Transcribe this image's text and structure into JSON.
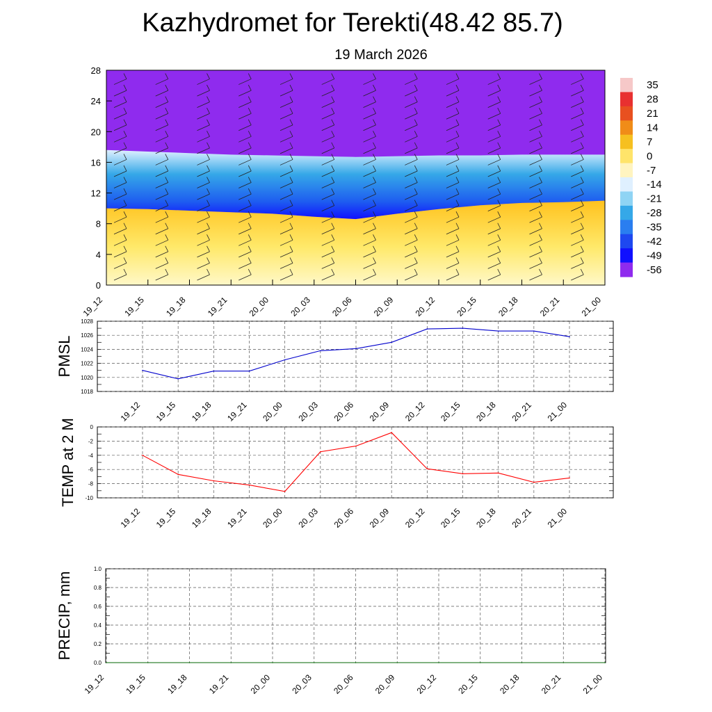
{
  "header": {
    "title": "Kazhydromet for Terekti(48.42 85.7)",
    "date": "19 March 2026"
  },
  "colors": {
    "purple": "#8f2bee",
    "deep_blue": "#1010ff",
    "blue": "#1e5cf0",
    "sky": "#35a8e8",
    "light": "#dff0ff",
    "yellow": "#ffe96a",
    "orange": "#ffc21e",
    "pmsl_line": "#0000cc",
    "temp_line": "#ff0000",
    "precip_line": "#006400"
  },
  "chart_data": [
    {
      "id": "crosssection",
      "type": "heatmap",
      "title": "Kazhydromet for Terekti(48.42 85.7)",
      "subtitle": "19 March 2026",
      "xlabel": "",
      "ylabel": "",
      "ylim": [
        0,
        28
      ],
      "yticks": [
        "0",
        "4",
        "8",
        "12",
        "16",
        "20",
        "24",
        "28"
      ],
      "categories": [
        "19_12",
        "19_15",
        "19_18",
        "19_21",
        "20_00",
        "20_03",
        "20_06",
        "20_09",
        "20_12",
        "20_15",
        "20_18",
        "20_21",
        "21_00"
      ],
      "freezing_level_km": [
        10,
        9.9,
        9.7,
        9.5,
        9.3,
        8.9,
        8.6,
        9.3,
        9.9,
        10.4,
        10.7,
        10.8,
        11.0
      ],
      "tropopause_km": [
        17.6,
        17.4,
        17.2,
        17.0,
        16.9,
        16.8,
        16.7,
        16.8,
        16.9,
        16.9,
        17.0,
        17.0,
        17.0
      ],
      "colorbar": {
        "labels": [
          "35",
          "28",
          "21",
          "14",
          "7",
          "0",
          "-7",
          "-14",
          "-21",
          "-28",
          "-35",
          "-42",
          "-49",
          "-56"
        ],
        "range": [
          -63,
          42
        ]
      }
    },
    {
      "id": "pmsl",
      "type": "line",
      "ylabel": "PMSL",
      "ylim": [
        1018,
        1028
      ],
      "yticks": [
        "1018",
        "1020",
        "1022",
        "1024",
        "1026",
        "1028"
      ],
      "categories": [
        "19_12",
        "19_15",
        "19_18",
        "19_21",
        "20_00",
        "20_03",
        "20_06",
        "20_09",
        "20_12",
        "20_15",
        "20_18",
        "20_21",
        "21_00"
      ],
      "series": [
        {
          "name": "PMSL",
          "values": [
            1021.0,
            1019.8,
            1020.9,
            1020.9,
            1022.5,
            1023.8,
            1024.1,
            1025.0,
            1026.9,
            1027.0,
            1026.6,
            1026.6,
            1025.8
          ]
        }
      ]
    },
    {
      "id": "temp",
      "type": "line",
      "ylabel": "TEMP at 2 M",
      "ylim": [
        -10,
        0
      ],
      "yticks": [
        "-10",
        "-8",
        "-6",
        "-4",
        "-2",
        "0"
      ],
      "categories": [
        "19_12",
        "19_15",
        "19_18",
        "19_21",
        "20_00",
        "20_03",
        "20_06",
        "20_09",
        "20_12",
        "20_15",
        "20_18",
        "20_21",
        "21_00"
      ],
      "series": [
        {
          "name": "TEMP at 2 M",
          "values": [
            -4.0,
            -6.7,
            -7.6,
            -8.2,
            -9.1,
            -3.5,
            -2.7,
            -0.8,
            -5.9,
            -6.6,
            -6.5,
            -7.8,
            -7.2
          ]
        }
      ]
    },
    {
      "id": "precip",
      "type": "line",
      "ylabel": "PRECIP, mm",
      "ylim": [
        0,
        1
      ],
      "yticks": [
        "0.0",
        "0.2",
        "0.4",
        "0.6",
        "0.8",
        "1.0"
      ],
      "categories": [
        "19_12",
        "19_15",
        "19_18",
        "19_21",
        "20_00",
        "20_03",
        "20_06",
        "20_09",
        "20_12",
        "20_15",
        "20_18",
        "20_21",
        "21_00"
      ],
      "series": [
        {
          "name": "PRECIP, mm",
          "values": [
            0,
            0,
            0,
            0,
            0,
            0,
            0,
            0,
            0,
            0,
            0,
            0,
            0
          ]
        }
      ]
    }
  ]
}
